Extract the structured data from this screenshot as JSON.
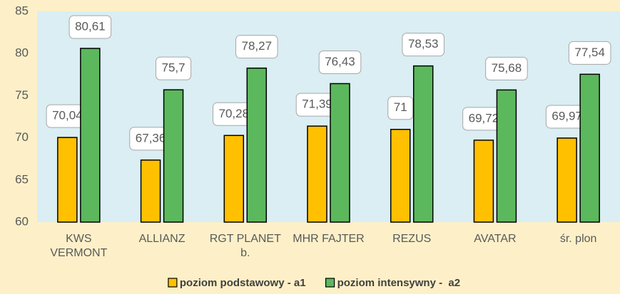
{
  "chart_data": {
    "type": "bar",
    "categories": [
      "KWS VERMONT",
      "ALLIANZ",
      "RGT PLANET b.",
      "MHR FAJTER",
      "REZUS",
      "AVATAR",
      "śr. plon"
    ],
    "series": [
      {
        "name": "poziom podstawowy - a1",
        "color": "#ffc000",
        "values": [
          70.04,
          67.36,
          70.28,
          71.39,
          71,
          69.72,
          69.97
        ],
        "value_labels": [
          "70,04",
          "67,36",
          "70,28",
          "71,39",
          "71",
          "69,72",
          "69,97"
        ]
      },
      {
        "name": "poziom intensywny -  a2",
        "color": "#5cb85c",
        "values": [
          80.61,
          75.7,
          78.27,
          76.43,
          78.53,
          75.68,
          77.54
        ],
        "value_labels": [
          "80,61",
          "75,7",
          "78,27",
          "76,43",
          "78,53",
          "75,68",
          "77,54"
        ]
      }
    ],
    "ylim": [
      60,
      85
    ],
    "yticks": [
      60,
      65,
      70,
      75,
      80,
      85
    ],
    "grid": false,
    "legend": "bottom"
  }
}
